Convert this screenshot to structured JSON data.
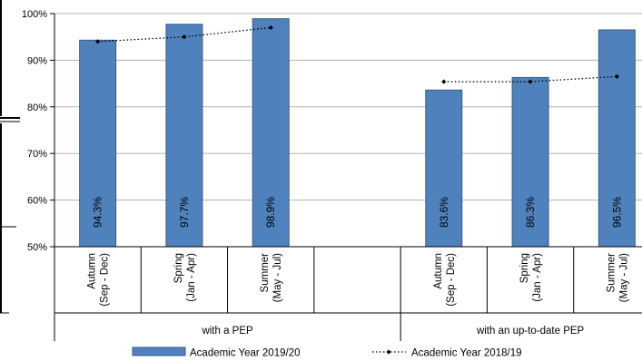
{
  "chart_data": {
    "type": "bar",
    "title": "",
    "xlabel": "",
    "ylabel": "",
    "ylim": [
      50,
      100
    ],
    "y_ticks": [
      "50%",
      "60%",
      "70%",
      "80%",
      "90%",
      "100%"
    ],
    "y_tick_values": [
      50,
      60,
      70,
      80,
      90,
      100
    ],
    "grid": "horizontal",
    "legend_position": "bottom",
    "groups": [
      {
        "name": "with a PEP",
        "span": 4
      },
      {
        "name": "with an up-to-date PEP",
        "span": 3
      }
    ],
    "categories": [
      {
        "line1": "Autumn",
        "line2": "(Sep - Dec)"
      },
      {
        "line1": "Spring",
        "line2": "(Jan - Apr)"
      },
      {
        "line1": "Summer",
        "line2": "(May - Jul)"
      },
      {
        "line1": "",
        "line2": ""
      },
      {
        "line1": "Autumn",
        "line2": "(Sep - Dec)"
      },
      {
        "line1": "Spring",
        "line2": "(Jan - Apr)"
      },
      {
        "line1": "Summer",
        "line2": "(May - Jul)"
      }
    ],
    "series": [
      {
        "name": "Academic Year 2019/20",
        "type": "bar",
        "color": "#4f81bd",
        "border": "#385d8a",
        "values": [
          94.3,
          97.7,
          98.9,
          null,
          83.6,
          86.3,
          96.5
        ],
        "labels": [
          "94.3%",
          "97.7%",
          "98.9%",
          "",
          "83.6%",
          "86.3%",
          "96.5%"
        ]
      },
      {
        "name": "Academic Year 2018/19",
        "type": "line",
        "style": "dotted",
        "color": "#000000",
        "values": [
          94.0,
          95.0,
          97.0,
          null,
          85.4,
          85.4,
          86.5
        ]
      }
    ]
  }
}
